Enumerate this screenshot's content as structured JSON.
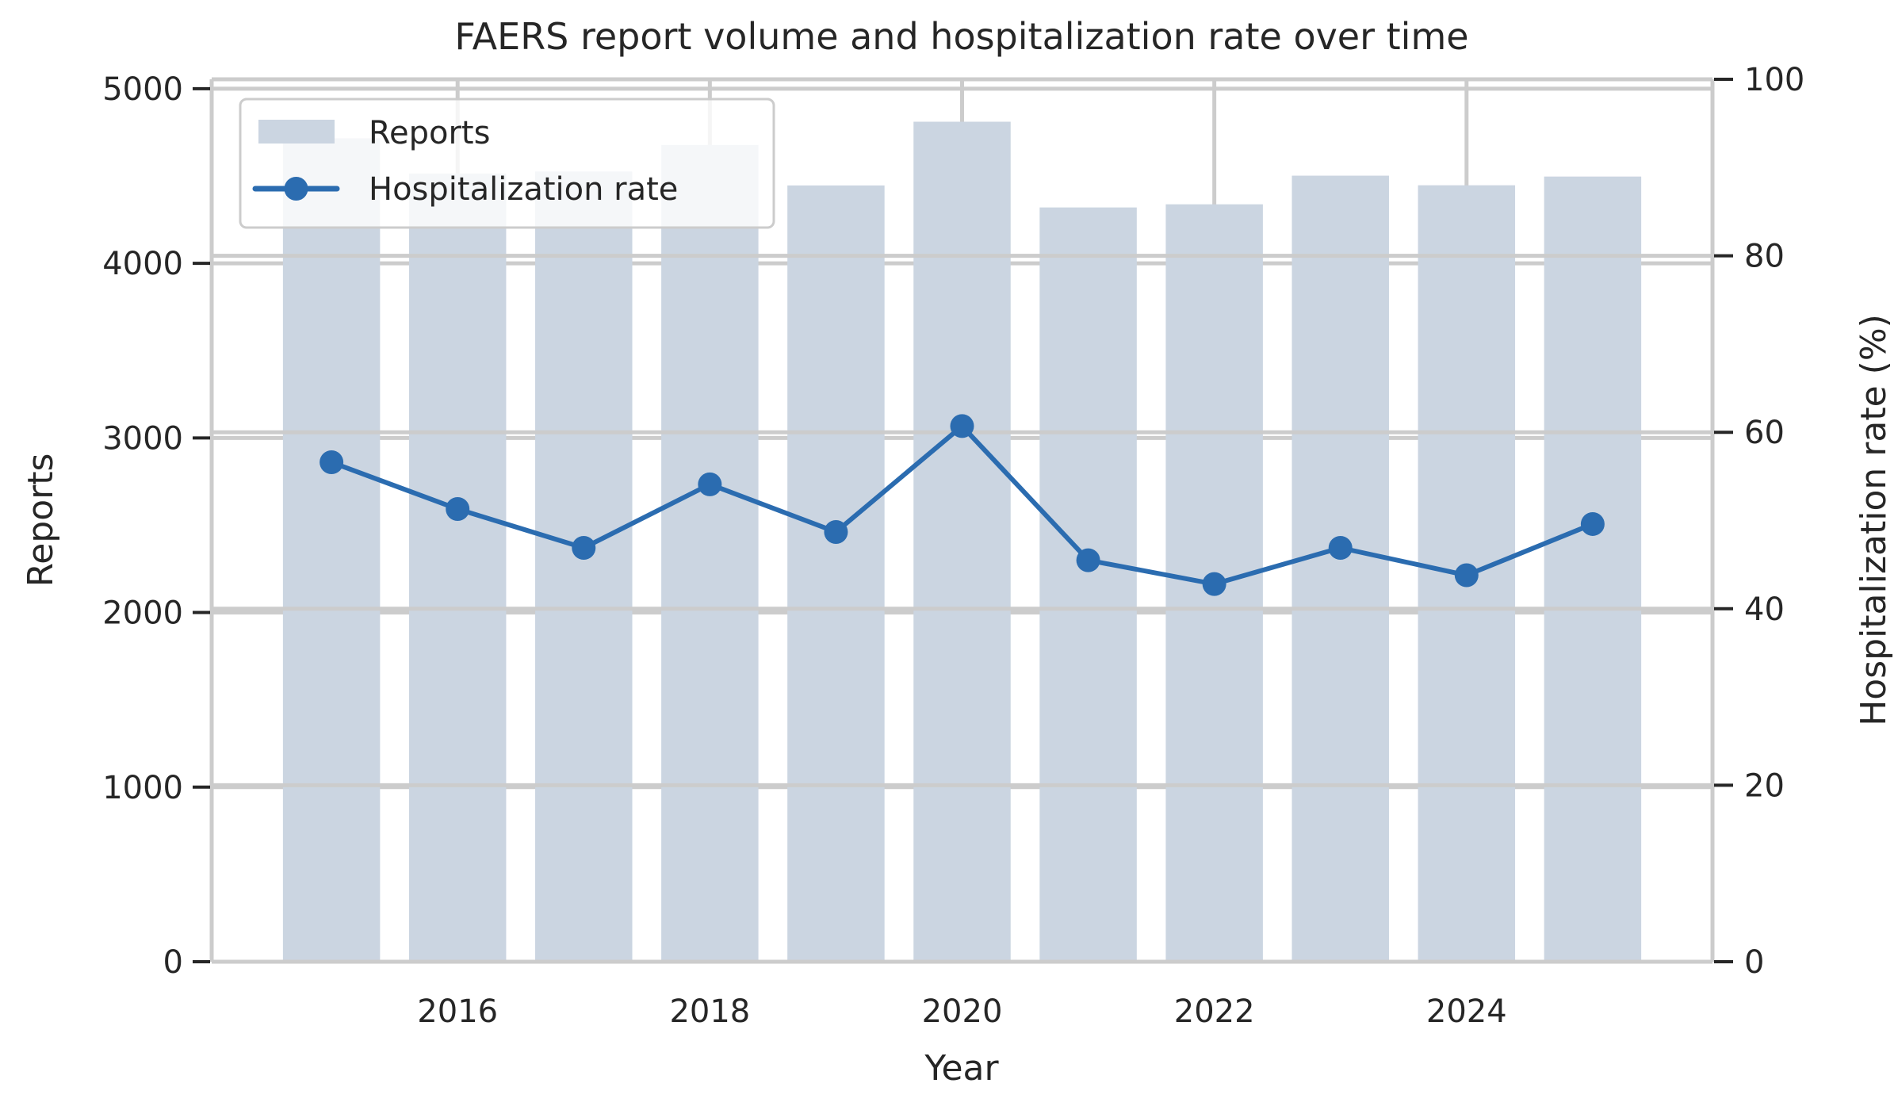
{
  "chart_data": {
    "type": "bar+line",
    "title": "FAERS report volume and hospitalization rate over time",
    "xlabel": "Year",
    "ylabel": "Reports",
    "y2label": "Hospitalization rate (%)",
    "x": [
      2015,
      2016,
      2017,
      2018,
      2019,
      2020,
      2021,
      2022,
      2023,
      2024,
      2025
    ],
    "xticks": [
      2016,
      2018,
      2020,
      2022,
      2024
    ],
    "xtick_labels": [
      "2016",
      "2018",
      "2020",
      "2022",
      "2024"
    ],
    "xlim": [
      2014.05,
      2025.95
    ],
    "ylim": [
      0,
      5054
    ],
    "yticks": [
      0,
      1000,
      2000,
      3000,
      4000,
      5000
    ],
    "ytick_labels": [
      "0",
      "1000",
      "2000",
      "3000",
      "4000",
      "5000"
    ],
    "y2lim": [
      0,
      100
    ],
    "y2ticks": [
      0,
      20,
      40,
      60,
      80,
      100
    ],
    "y2tick_labels": [
      "0",
      "20",
      "40",
      "60",
      "80",
      "100"
    ],
    "grid": true,
    "legend_position": "top-left",
    "series": [
      {
        "name": "Reports",
        "type": "bar",
        "axis": "left",
        "color": "#cbd5e1",
        "values": [
          4716,
          4514,
          4526,
          4678,
          4446,
          4811,
          4320,
          4338,
          4502,
          4447,
          4497
        ]
      },
      {
        "name": "Hospitalization rate",
        "type": "line",
        "axis": "right",
        "marker": "circle",
        "color": "#2b6cb0",
        "values": [
          56.6,
          51.3,
          46.9,
          54.1,
          48.7,
          60.7,
          45.5,
          42.8,
          46.9,
          43.8,
          49.6
        ]
      }
    ]
  },
  "colors": {
    "text": "#262626",
    "grid": "#cccccc",
    "spine": "#cccccc",
    "tick": "#262626",
    "legend_bg": "#ffffff",
    "legend_border": "#cccccc"
  }
}
